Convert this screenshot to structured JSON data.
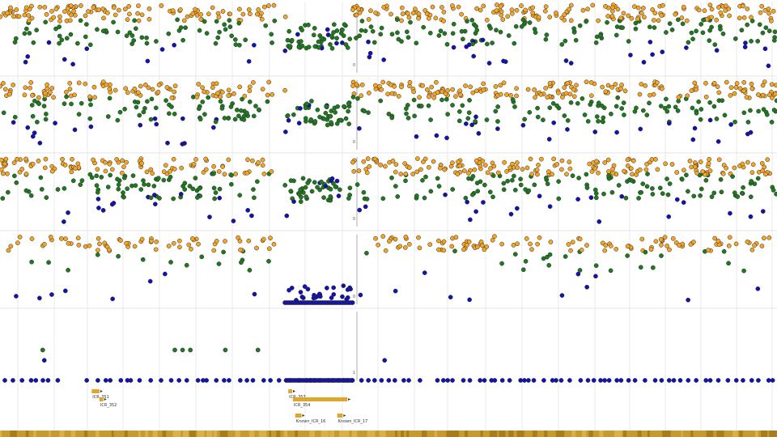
{
  "palette": {
    "high": "#f5a524",
    "mid": "#1f7a1f",
    "low": "#1212b0",
    "grid": "#d9d9d9",
    "track_separator": "#e6e6e6",
    "icr": "#e0a62b",
    "ideogram": "#c79a2e"
  },
  "chart_data": {
    "type": "scatter",
    "tracks": [
      {
        "id": "track-1",
        "ylim": [
          0,
          1
        ],
        "axis_tick_label": "0"
      },
      {
        "id": "track-2",
        "ylim": [
          0,
          1
        ],
        "axis_tick_label": "0"
      },
      {
        "id": "track-3",
        "ylim": [
          0,
          1
        ],
        "axis_tick_label": "0"
      },
      {
        "id": "track-4",
        "ylim": [
          0,
          1
        ],
        "axis_tick_label": "0"
      },
      {
        "id": "track-5",
        "ylim": [
          0,
          1
        ],
        "axis_tick_label": "1"
      }
    ],
    "track5_points": {
      "baseline": [
        0.0
      ],
      "elevated": [
        {
          "x": 0.055,
          "y": 0.5
        },
        {
          "x": 0.057,
          "y": 0.33
        },
        {
          "x": 0.225,
          "y": 0.5
        },
        {
          "x": 0.235,
          "y": 0.5
        },
        {
          "x": 0.245,
          "y": 0.5
        },
        {
          "x": 0.29,
          "y": 0.5
        },
        {
          "x": 0.332,
          "y": 0.5
        },
        {
          "x": 0.495,
          "y": 0.33
        }
      ]
    },
    "icr_features": [
      {
        "label": "ICR_351",
        "start": 0.118,
        "end": 0.128,
        "row": 0
      },
      {
        "label": "ICR_352",
        "start": 0.128,
        "end": 0.133,
        "row": 1
      },
      {
        "label": "ICR_353",
        "start": 0.371,
        "end": 0.376,
        "row": 0
      },
      {
        "label": "ICR_354",
        "start": 0.377,
        "end": 0.447,
        "row": 1
      },
      {
        "label": "Known_ICR_16",
        "start": 0.38,
        "end": 0.388,
        "row": 2
      },
      {
        "label": "Known_ICR_17",
        "start": 0.434,
        "end": 0.441,
        "row": 2
      }
    ]
  }
}
